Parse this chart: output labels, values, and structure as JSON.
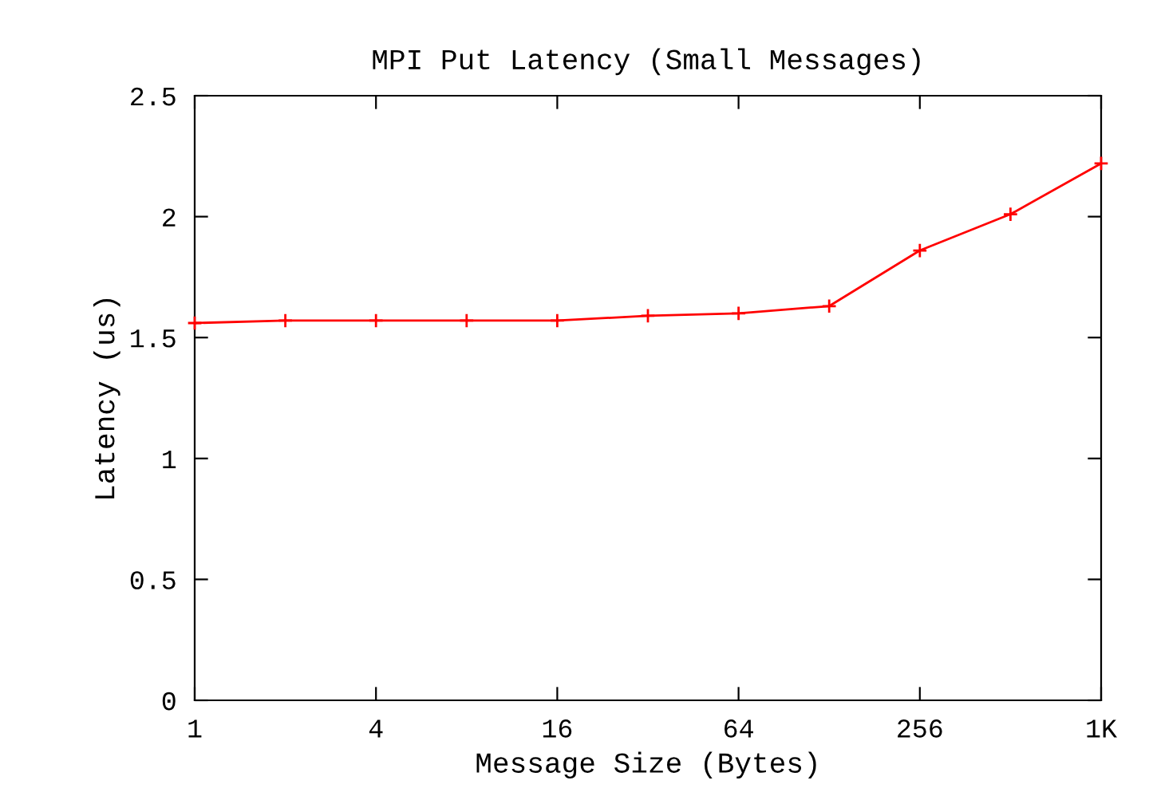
{
  "chart_data": {
    "type": "line",
    "title": "MPI Put Latency (Small Messages)",
    "xlabel": "Message Size (Bytes)",
    "ylabel": "Latency (us)",
    "x": [
      1,
      2,
      4,
      8,
      16,
      32,
      64,
      128,
      256,
      512,
      1024
    ],
    "series": [
      {
        "color": "#ff0000",
        "values": [
          1.56,
          1.57,
          1.57,
          1.57,
          1.57,
          1.59,
          1.6,
          1.63,
          1.86,
          2.01,
          2.22
        ]
      }
    ],
    "log": "x",
    "marker": "cross",
    "line_style": "solid",
    "grid": false,
    "xlim": [
      1,
      1024
    ],
    "xticks": [
      1,
      4,
      16,
      64,
      256,
      {
        "value": 1024,
        "label": "1K"
      }
    ],
    "ylim": [
      0,
      2.5
    ],
    "yticks": [
      0,
      0.5,
      1,
      1.5,
      2,
      2.5
    ]
  }
}
